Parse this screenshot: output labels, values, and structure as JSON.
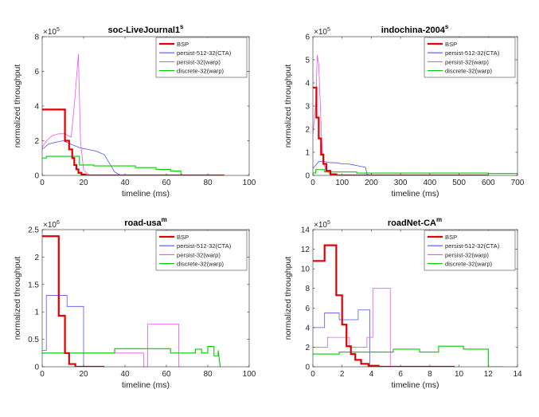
{
  "figure": {
    "legend_labels": [
      "BSP",
      "persist-512-32(CTA)",
      "persist-32(warp)",
      "discrete-32(warp)"
    ],
    "series_colors": {
      "BSP": "#e00000",
      "persist-512-32(CTA)": "#5555ee",
      "persist-32(warp)": "#ee55ee",
      "discrete-32(warp)": "#00cc00"
    }
  },
  "chart_data": [
    {
      "type": "line",
      "title": "soc-LiveJournal1",
      "title_superscript": "s",
      "xlabel": "timeline (ms)",
      "ylabel": "normalized throughput",
      "y_exponent": "×10",
      "y_exponent_power": "5",
      "xlim": [
        0,
        100
      ],
      "ylim": [
        0,
        8
      ],
      "xticks": [
        0,
        20,
        40,
        60,
        80,
        100
      ],
      "yticks": [
        0,
        2,
        4,
        6,
        8
      ],
      "legend": "top-right",
      "series": [
        {
          "name": "BSP",
          "x": [
            0,
            11,
            11,
            13,
            13,
            14.5,
            14.5,
            15.5,
            15.5,
            16.5,
            16.5,
            17.5,
            17.5,
            19,
            19,
            21,
            21,
            88
          ],
          "y": [
            3.8,
            3.8,
            2.0,
            2.0,
            1.5,
            1.5,
            1.0,
            1.0,
            0.6,
            0.6,
            0.35,
            0.35,
            0.15,
            0.15,
            0.05,
            0.05,
            0.0,
            0.0
          ]
        },
        {
          "name": "persist-512-32(CTA)",
          "x": [
            0,
            3,
            6,
            10,
            14,
            18,
            22,
            26,
            30,
            33,
            35,
            38
          ],
          "y": [
            1.5,
            1.8,
            1.9,
            2.0,
            1.8,
            1.6,
            1.5,
            1.4,
            1.2,
            0.6,
            0.2,
            0.0
          ]
        },
        {
          "name": "persist-32(warp)",
          "x": [
            0,
            2,
            5,
            8,
            11,
            14,
            15.5,
            16.5,
            17.5,
            18.5,
            20,
            23
          ],
          "y": [
            1.6,
            2.0,
            2.3,
            2.4,
            2.4,
            2.2,
            4.0,
            5.5,
            7.0,
            2.0,
            0.3,
            0.0
          ]
        },
        {
          "name": "discrete-32(warp)",
          "x": [
            0,
            2,
            2,
            18,
            18,
            25,
            25,
            45,
            45,
            55,
            55,
            62,
            62,
            67,
            67,
            68
          ],
          "y": [
            1.0,
            1.0,
            1.1,
            1.1,
            0.6,
            0.6,
            0.55,
            0.55,
            0.45,
            0.45,
            0.35,
            0.35,
            0.25,
            0.25,
            0.1,
            0.0
          ]
        }
      ]
    },
    {
      "type": "line",
      "title": "indochina-2004",
      "title_superscript": "s",
      "xlabel": "timeline (ms)",
      "ylabel": "normalized throughput",
      "y_exponent": "×10",
      "y_exponent_power": "5",
      "xlim": [
        0,
        700
      ],
      "ylim": [
        0,
        6
      ],
      "xticks": [
        0,
        100,
        200,
        300,
        400,
        500,
        600,
        700
      ],
      "yticks": [
        0,
        1,
        2,
        3,
        4,
        5,
        6
      ],
      "legend": "top-right",
      "series": [
        {
          "name": "BSP",
          "x": [
            0,
            12,
            12,
            20,
            20,
            28,
            28,
            36,
            36,
            46,
            46,
            60,
            60,
            80,
            80,
            600
          ],
          "y": [
            3.8,
            3.8,
            2.5,
            2.5,
            1.6,
            1.6,
            0.9,
            0.9,
            0.5,
            0.5,
            0.2,
            0.2,
            0.05,
            0.05,
            0.0,
            0.0
          ]
        },
        {
          "name": "persist-512-32(CTA)",
          "x": [
            0,
            20,
            40,
            60,
            80,
            100,
            120,
            140,
            160,
            180,
            185,
            200
          ],
          "y": [
            0.3,
            0.6,
            0.6,
            0.55,
            0.55,
            0.5,
            0.5,
            0.45,
            0.4,
            0.35,
            0.05,
            0.0
          ]
        },
        {
          "name": "persist-32(warp)",
          "x": [
            0,
            5,
            10,
            15,
            20,
            25,
            30,
            35,
            45,
            60,
            80
          ],
          "y": [
            1.8,
            2.4,
            3.2,
            5.2,
            4.8,
            3.2,
            1.5,
            0.6,
            0.2,
            0.05,
            0.0
          ]
        },
        {
          "name": "discrete-32(warp)",
          "x": [
            0,
            10,
            10,
            40,
            40,
            150,
            150,
            600,
            600,
            700
          ],
          "y": [
            0.1,
            0.1,
            0.25,
            0.25,
            0.15,
            0.15,
            0.1,
            0.1,
            0.08,
            0.08
          ]
        }
      ]
    },
    {
      "type": "line",
      "title": "road-usa",
      "title_superscript": "m",
      "xlabel": "timeline (ms)",
      "ylabel": "normalized throughput",
      "y_exponent": "×10",
      "y_exponent_power": "6",
      "xlim": [
        0,
        100
      ],
      "ylim": [
        0,
        2.5
      ],
      "xticks": [
        0,
        20,
        40,
        60,
        80,
        100
      ],
      "yticks": [
        0,
        0.5,
        1,
        1.5,
        2,
        2.5
      ],
      "legend": "top-right",
      "series": [
        {
          "name": "BSP",
          "x": [
            0,
            8,
            8,
            11,
            11,
            13,
            13,
            16,
            16,
            30
          ],
          "y": [
            2.38,
            2.38,
            0.93,
            0.93,
            0.25,
            0.25,
            0.05,
            0.05,
            0.0,
            0.0
          ]
        },
        {
          "name": "persist-512-32(CTA)",
          "x": [
            0,
            2,
            2,
            12,
            12,
            20,
            20,
            21
          ],
          "y": [
            0.3,
            0.3,
            1.3,
            1.3,
            1.1,
            1.1,
            0.0,
            0.0
          ]
        },
        {
          "name": "persist-32(warp)",
          "x": [
            0,
            49,
            49,
            51,
            51,
            66,
            66,
            67
          ],
          "y": [
            0.25,
            0.25,
            0.0,
            0.0,
            0.78,
            0.78,
            0.0,
            0.0
          ]
        },
        {
          "name": "discrete-32(warp)",
          "x": [
            0,
            35,
            35,
            62,
            62,
            74,
            74,
            77,
            77,
            80,
            80,
            83,
            83,
            85,
            85,
            86
          ],
          "y": [
            0.25,
            0.25,
            0.33,
            0.33,
            0.25,
            0.25,
            0.32,
            0.32,
            0.25,
            0.25,
            0.37,
            0.37,
            0.2,
            0.2,
            0.3,
            0.0
          ]
        }
      ]
    },
    {
      "type": "line",
      "title": "roadNet-CA",
      "title_superscript": "m",
      "xlabel": "timeline (ms)",
      "ylabel": "normalized throughput",
      "y_exponent": "×10",
      "y_exponent_power": "5",
      "xlim": [
        0,
        14
      ],
      "ylim": [
        0,
        14
      ],
      "xticks": [
        0,
        2,
        4,
        6,
        8,
        10,
        12,
        14
      ],
      "yticks": [
        0,
        2,
        4,
        6,
        8,
        10,
        12,
        14
      ],
      "legend": "top-right",
      "series": [
        {
          "name": "BSP",
          "x": [
            0,
            0.8,
            0.8,
            1.6,
            1.6,
            2.0,
            2.0,
            2.3,
            2.3,
            2.6,
            2.6,
            2.9,
            2.9,
            3.3,
            3.3,
            3.8,
            3.8,
            4.5,
            4.5,
            9.7
          ],
          "y": [
            10.8,
            10.8,
            12.4,
            12.4,
            7.3,
            7.3,
            4.3,
            4.3,
            2.1,
            2.1,
            1.3,
            1.3,
            0.7,
            0.7,
            0.3,
            0.3,
            0.1,
            0.1,
            0.0,
            0.0
          ]
        },
        {
          "name": "persist-512-32(CTA)",
          "x": [
            0,
            0.8,
            0.8,
            1.8,
            1.8,
            3.1,
            3.1,
            3.9,
            3.9,
            4.0
          ],
          "y": [
            4.0,
            4.0,
            5.5,
            5.5,
            4.8,
            4.8,
            5.8,
            5.8,
            0.0,
            0.0
          ]
        },
        {
          "name": "persist-32(warp)",
          "x": [
            0,
            1.0,
            1.0,
            2.5,
            2.5,
            3.7,
            3.7,
            4.1,
            4.1,
            5.3,
            5.3,
            5.5
          ],
          "y": [
            2.0,
            2.0,
            3.0,
            3.0,
            2.0,
            2.0,
            3.0,
            3.0,
            8.0,
            8.0,
            0.0,
            0.0
          ]
        },
        {
          "name": "discrete-32(warp)",
          "x": [
            0,
            1.8,
            1.8,
            5.5,
            5.5,
            7.3,
            7.3,
            8.6,
            8.6,
            10.3,
            10.3,
            12.0,
            12.0,
            13.0
          ],
          "y": [
            1.3,
            1.3,
            1.5,
            1.5,
            1.8,
            1.8,
            1.5,
            1.5,
            2.1,
            2.1,
            1.8,
            1.8,
            0.0,
            0.0
          ]
        }
      ]
    }
  ]
}
